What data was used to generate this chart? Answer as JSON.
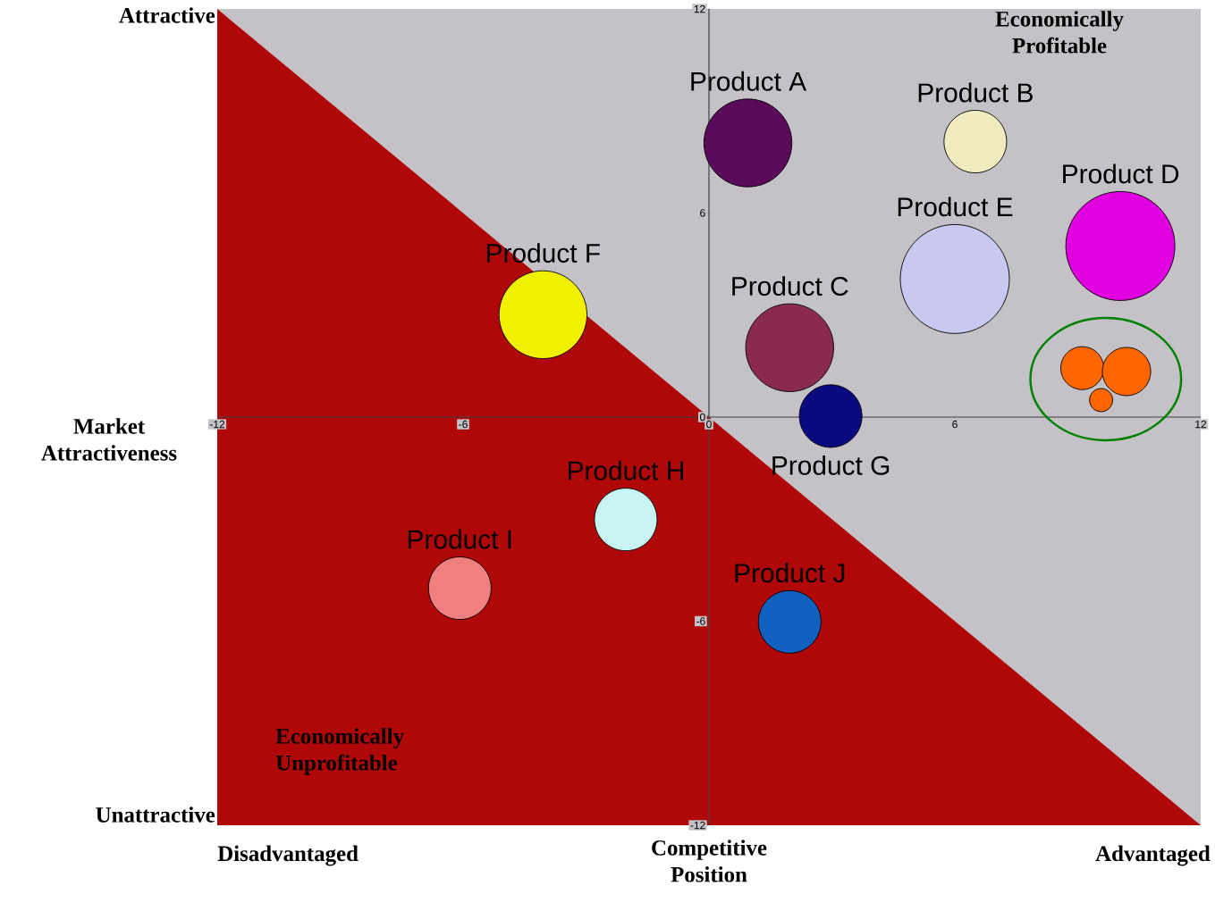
{
  "chart_data": {
    "type": "bubble",
    "xlabel": "Competitive Position",
    "ylabel": "Market Attractiveness",
    "annotations": [
      "Attractive",
      "Unattractive",
      "Disadvantaged",
      "Advantaged",
      "Economically Profitable",
      "Economically Unprofitable"
    ],
    "xlim": [
      -12,
      12
    ],
    "ylim": [
      -12,
      12
    ],
    "xticks": [
      -12,
      -6,
      0,
      6,
      12
    ],
    "yticks": [
      -12,
      -6,
      0,
      6,
      12
    ],
    "series": [
      {
        "type": "area",
        "color": "#b00808",
        "x": [
          -12,
          12
        ],
        "values": [
          12,
          -12
        ]
      },
      {
        "name": "Product A",
        "color": "#5a0a5a",
        "x": [
          0.95
        ],
        "values": [
          8.06
        ],
        "sizes": [
          0.65
        ]
      },
      {
        "name": "Product B",
        "color": "#f0ecc0",
        "x": [
          6.5
        ],
        "values": [
          8.1
        ],
        "sizes": [
          0.33
        ]
      },
      {
        "name": "Product C",
        "color": "#8a2a50",
        "x": [
          1.97
        ],
        "values": [
          2.04
        ],
        "sizes": [
          0.65
        ]
      },
      {
        "name": "Product D",
        "color": "#e000e0",
        "x": [
          10.04
        ],
        "values": [
          5.03
        ],
        "sizes": [
          1
        ]
      },
      {
        "name": "Product E",
        "color": "#c8c8f0",
        "x": [
          6.0
        ],
        "values": [
          4.06
        ],
        "sizes": [
          1
        ]
      },
      {
        "name": "Product F",
        "color": "#f0f000",
        "x": [
          -4.05
        ],
        "values": [
          3.01
        ],
        "sizes": [
          0.65
        ]
      },
      {
        "name": "Product G",
        "color": "#0a0a80",
        "x": [
          2.97
        ],
        "values": [
          0.03
        ],
        "sizes": [
          0.33
        ]
      },
      {
        "name": "Product H",
        "color": "#c8f4f4",
        "x": [
          -2.03
        ],
        "values": [
          -3.01
        ],
        "sizes": [
          0.33
        ]
      },
      {
        "name": "Product I",
        "color": "#f08080",
        "x": [
          -6.08
        ],
        "values": [
          -5.03
        ],
        "sizes": [
          0.33
        ]
      },
      {
        "name": "Product J",
        "color": "#1060c0",
        "x": [
          1.97
        ],
        "values": [
          -6.02
        ],
        "sizes": [
          0.33
        ]
      },
      {
        "color": "#ff6600",
        "x": [
          9.11,
          10.19,
          9.57
        ],
        "values": [
          1.44,
          1.34,
          0.5
        ],
        "sizes": [
          0.155,
          0.196,
          0.045
        ]
      }
    ]
  }
}
